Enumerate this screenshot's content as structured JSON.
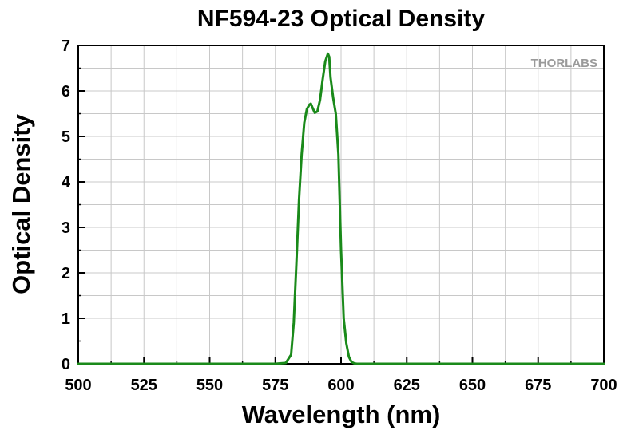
{
  "chart_data": {
    "type": "line",
    "title": "NF594-23 Optical Density",
    "xlabel": "Wavelength (nm)",
    "ylabel": "Optical Density",
    "xlim": [
      500,
      700
    ],
    "ylim": [
      0,
      7
    ],
    "x_ticks": [
      500,
      525,
      550,
      575,
      600,
      625,
      650,
      675,
      700
    ],
    "y_ticks": [
      0,
      1,
      2,
      3,
      4,
      5,
      6,
      7
    ],
    "grid": true,
    "watermark": "THORLABS",
    "line_color": "#1a8a1a",
    "series": [
      {
        "x": [
          500,
          560,
          575,
          579,
          581,
          582,
          583,
          584,
          585,
          586,
          587,
          588,
          588.5,
          589,
          590,
          591,
          592,
          593,
          594,
          595,
          595.5,
          596,
          597,
          598,
          599,
          600,
          601,
          602,
          603,
          604,
          605,
          606,
          620,
          700
        ],
        "y": [
          0,
          0,
          0,
          0.02,
          0.2,
          0.9,
          2.2,
          3.6,
          4.6,
          5.3,
          5.6,
          5.7,
          5.72,
          5.65,
          5.52,
          5.55,
          5.8,
          6.25,
          6.65,
          6.82,
          6.75,
          6.3,
          5.85,
          5.5,
          4.6,
          2.5,
          1.0,
          0.45,
          0.15,
          0.04,
          0.01,
          0,
          0,
          0
        ]
      }
    ]
  }
}
